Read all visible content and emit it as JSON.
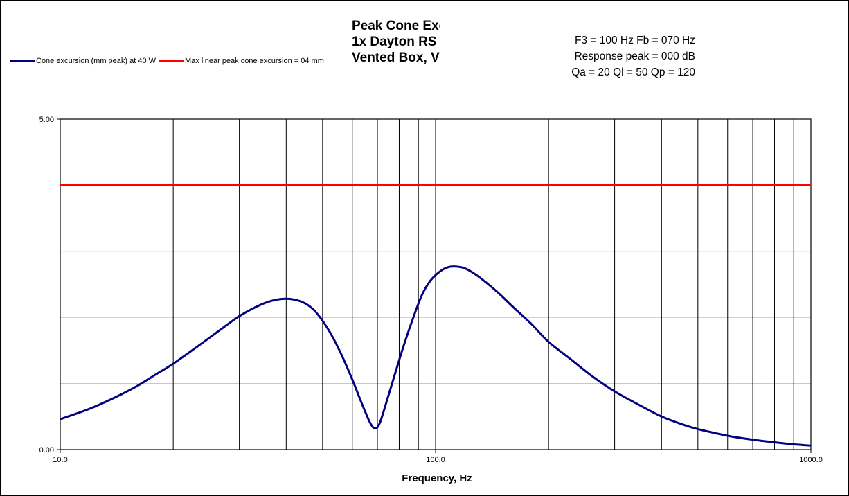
{
  "title_lines": [
    "Peak Cone Excursion",
    "1x Dayton RS",
    "Vented Box, V"
  ],
  "params": [
    "F3 = 100 Hz  Fb = 070 Hz",
    "Response  peak = 000 dB",
    "Qa = 20  Ql = 50  Qp = 120"
  ],
  "chart_data": {
    "type": "line",
    "title": "Peak Cone Excursion",
    "xlabel": "Frequency, Hz",
    "ylabel": "",
    "xscale": "log",
    "xlim": [
      10,
      1000
    ],
    "ylim": [
      0,
      5
    ],
    "x_ticks": [
      "10.0",
      "100.0",
      "1000.0"
    ],
    "y_ticks": [
      "0.00",
      "5.00"
    ],
    "grid": true,
    "legend_position": "top-left",
    "series": [
      {
        "name": "Cone excursion (mm peak) at 40 W",
        "color": "#000080",
        "points": [
          [
            10,
            0.46
          ],
          [
            12,
            0.62
          ],
          [
            14,
            0.79
          ],
          [
            16,
            0.96
          ],
          [
            18,
            1.14
          ],
          [
            20,
            1.3
          ],
          [
            24,
            1.62
          ],
          [
            28,
            1.9
          ],
          [
            30,
            2.02
          ],
          [
            33,
            2.15
          ],
          [
            36,
            2.24
          ],
          [
            39,
            2.28
          ],
          [
            42,
            2.27
          ],
          [
            45,
            2.21
          ],
          [
            48,
            2.08
          ],
          [
            52,
            1.8
          ],
          [
            56,
            1.45
          ],
          [
            60,
            1.06
          ],
          [
            64,
            0.66
          ],
          [
            67,
            0.4
          ],
          [
            69,
            0.32
          ],
          [
            71,
            0.4
          ],
          [
            74,
            0.72
          ],
          [
            78,
            1.15
          ],
          [
            82,
            1.55
          ],
          [
            87,
            1.98
          ],
          [
            92,
            2.34
          ],
          [
            97,
            2.56
          ],
          [
            103,
            2.7
          ],
          [
            108,
            2.76
          ],
          [
            113,
            2.77
          ],
          [
            120,
            2.74
          ],
          [
            130,
            2.62
          ],
          [
            145,
            2.4
          ],
          [
            160,
            2.17
          ],
          [
            180,
            1.9
          ],
          [
            200,
            1.63
          ],
          [
            230,
            1.36
          ],
          [
            260,
            1.12
          ],
          [
            300,
            0.88
          ],
          [
            350,
            0.67
          ],
          [
            400,
            0.5
          ],
          [
            450,
            0.39
          ],
          [
            500,
            0.31
          ],
          [
            600,
            0.21
          ],
          [
            700,
            0.15
          ],
          [
            800,
            0.11
          ],
          [
            900,
            0.08
          ],
          [
            1000,
            0.06
          ]
        ]
      },
      {
        "name": "Max linear peak cone excursion = 04 mm",
        "color": "#ff0000",
        "points": [
          [
            10,
            4.0
          ],
          [
            1000,
            4.0
          ]
        ]
      }
    ]
  }
}
